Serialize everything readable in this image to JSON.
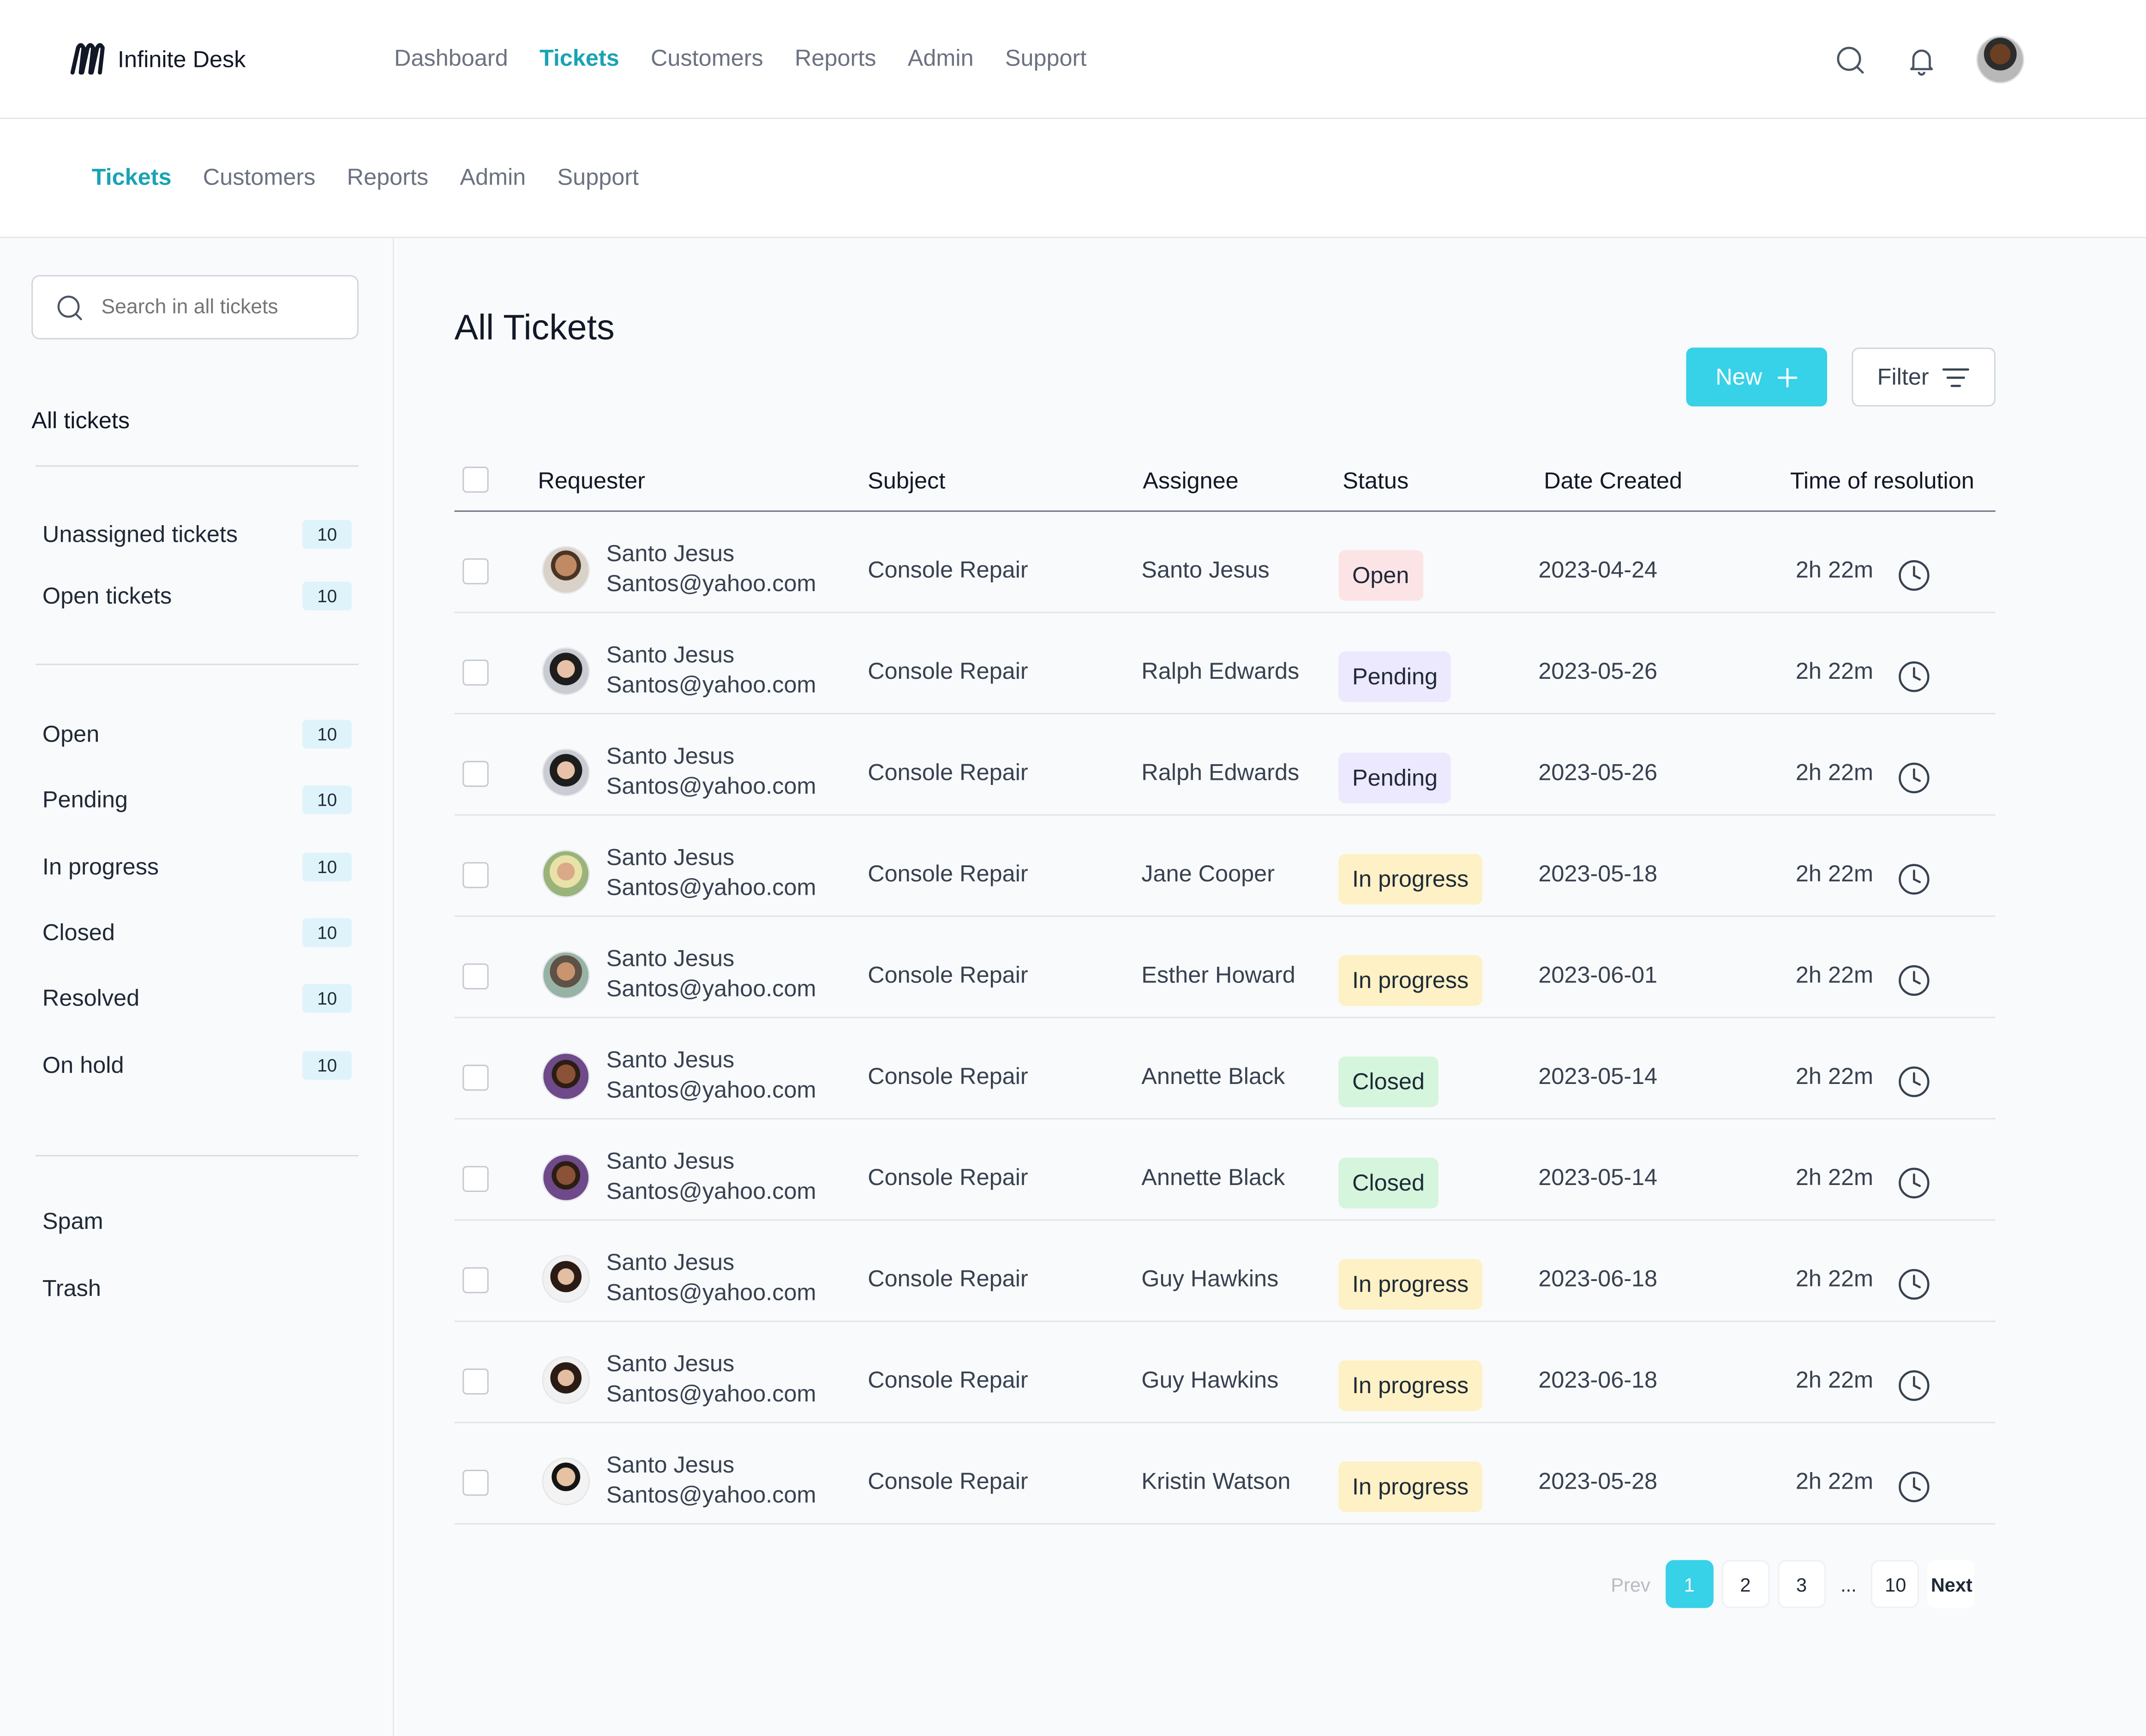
{
  "app": {
    "name": "Infinite Desk"
  },
  "colors": {
    "accent": "#1aa3b4",
    "primary_button": "#37d1e8",
    "open": "#fce4e6",
    "pending": "#ece8fd",
    "in_progress": "#fdf1c5",
    "closed": "#d5f5dc"
  },
  "main_nav": [
    {
      "label": "Dashboard",
      "active": false
    },
    {
      "label": "Tickets",
      "active": true
    },
    {
      "label": "Customers",
      "active": false
    },
    {
      "label": "Reports",
      "active": false
    },
    {
      "label": "Admin",
      "active": false
    },
    {
      "label": "Support",
      "active": false
    }
  ],
  "sub_nav": [
    {
      "label": "Tickets",
      "active": true
    },
    {
      "label": "Customers",
      "active": false
    },
    {
      "label": "Reports",
      "active": false
    },
    {
      "label": "Admin",
      "active": false
    },
    {
      "label": "Support",
      "active": false
    }
  ],
  "sidebar": {
    "search_placeholder": "Search in all tickets",
    "all_tickets_label": "All tickets",
    "group1": [
      {
        "label": "Unassigned tickets",
        "count": "10"
      },
      {
        "label": "Open tickets",
        "count": "10"
      }
    ],
    "group2": [
      {
        "label": "Open",
        "count": "10"
      },
      {
        "label": "Pending",
        "count": "10"
      },
      {
        "label": "In progress",
        "count": "10"
      },
      {
        "label": "Closed",
        "count": "10"
      },
      {
        "label": "Resolved",
        "count": "10"
      },
      {
        "label": "On hold",
        "count": "10"
      }
    ],
    "group3": [
      {
        "label": "Spam"
      },
      {
        "label": "Trash"
      }
    ]
  },
  "main": {
    "title": "All Tickets",
    "new_button": "New",
    "filter_button": "Filter",
    "columns": [
      "Requester",
      "Subject",
      "Assignee",
      "Status",
      "Date Created",
      "Time of resolution"
    ],
    "rows": [
      {
        "name": "Santo Jesus",
        "email": "Santos@yahoo.com",
        "subject": "Console Repair",
        "assignee": "Santo Jesus",
        "status": "Open",
        "status_kind": "open",
        "date": "2023-04-24",
        "time": "2h 22m"
      },
      {
        "name": "Santo Jesus",
        "email": "Santos@yahoo.com",
        "subject": "Console Repair",
        "assignee": "Ralph Edwards",
        "status": "Pending",
        "status_kind": "pending",
        "date": "2023-05-26",
        "time": "2h 22m"
      },
      {
        "name": "Santo Jesus",
        "email": "Santos@yahoo.com",
        "subject": "Console Repair",
        "assignee": "Ralph Edwards",
        "status": "Pending",
        "status_kind": "pending",
        "date": "2023-05-26",
        "time": "2h 22m"
      },
      {
        "name": "Santo Jesus",
        "email": "Santos@yahoo.com",
        "subject": "Console Repair",
        "assignee": "Jane Cooper",
        "status": "In progress",
        "status_kind": "in_progress",
        "date": "2023-05-18",
        "time": "2h 22m"
      },
      {
        "name": "Santo Jesus",
        "email": "Santos@yahoo.com",
        "subject": "Console Repair",
        "assignee": "Esther Howard",
        "status": "In progress",
        "status_kind": "in_progress",
        "date": "2023-06-01",
        "time": "2h 22m"
      },
      {
        "name": "Santo Jesus",
        "email": "Santos@yahoo.com",
        "subject": "Console Repair",
        "assignee": "Annette Black",
        "status": "Closed",
        "status_kind": "closed",
        "date": "2023-05-14",
        "time": "2h 22m"
      },
      {
        "name": "Santo Jesus",
        "email": "Santos@yahoo.com",
        "subject": "Console Repair",
        "assignee": "Annette Black",
        "status": "Closed",
        "status_kind": "closed",
        "date": "2023-05-14",
        "time": "2h 22m"
      },
      {
        "name": "Santo Jesus",
        "email": "Santos@yahoo.com",
        "subject": "Console Repair",
        "assignee": "Guy Hawkins",
        "status": "In progress",
        "status_kind": "in_progress",
        "date": "2023-06-18",
        "time": "2h 22m"
      },
      {
        "name": "Santo Jesus",
        "email": "Santos@yahoo.com",
        "subject": "Console Repair",
        "assignee": "Guy Hawkins",
        "status": "In progress",
        "status_kind": "in_progress",
        "date": "2023-06-18",
        "time": "2h 22m"
      },
      {
        "name": "Santo Jesus",
        "email": "Santos@yahoo.com",
        "subject": "Console Repair",
        "assignee": "Kristin Watson",
        "status": "In progress",
        "status_kind": "in_progress",
        "date": "2023-05-28",
        "time": "2h 22m"
      }
    ],
    "pagination": {
      "prev": "Prev",
      "pages": [
        "1",
        "2",
        "3"
      ],
      "ellipsis": "...",
      "last": "10",
      "next": "Next",
      "current": "1"
    }
  }
}
